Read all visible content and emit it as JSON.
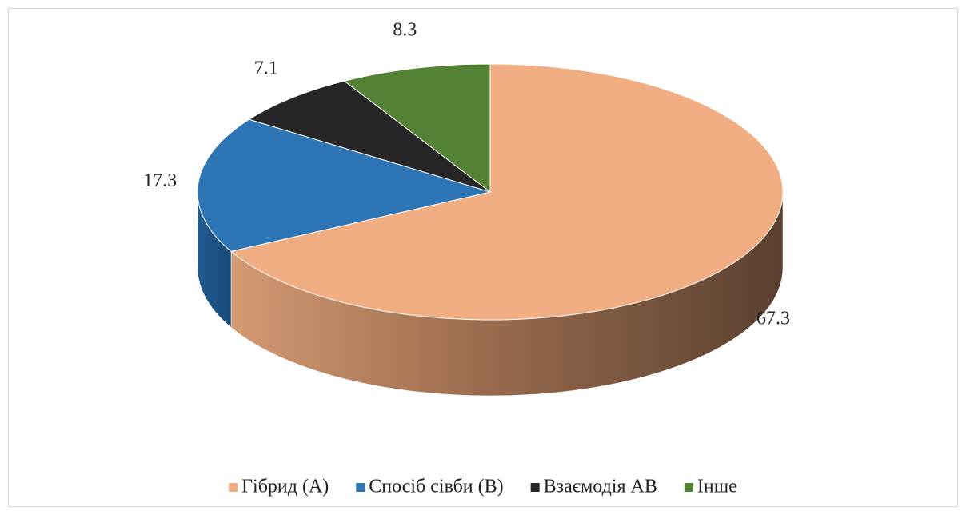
{
  "chart_data": {
    "type": "pie3d",
    "categories": [
      "Гібрид (A)",
      "Спосіб сівби (B)",
      "Взаємодія AB",
      "Інше"
    ],
    "values": [
      67.3,
      17.3,
      7.1,
      8.3
    ],
    "colors": [
      "#f0ae82",
      "#2e75b6",
      "#262626",
      "#548235"
    ],
    "legend": "bottom"
  }
}
